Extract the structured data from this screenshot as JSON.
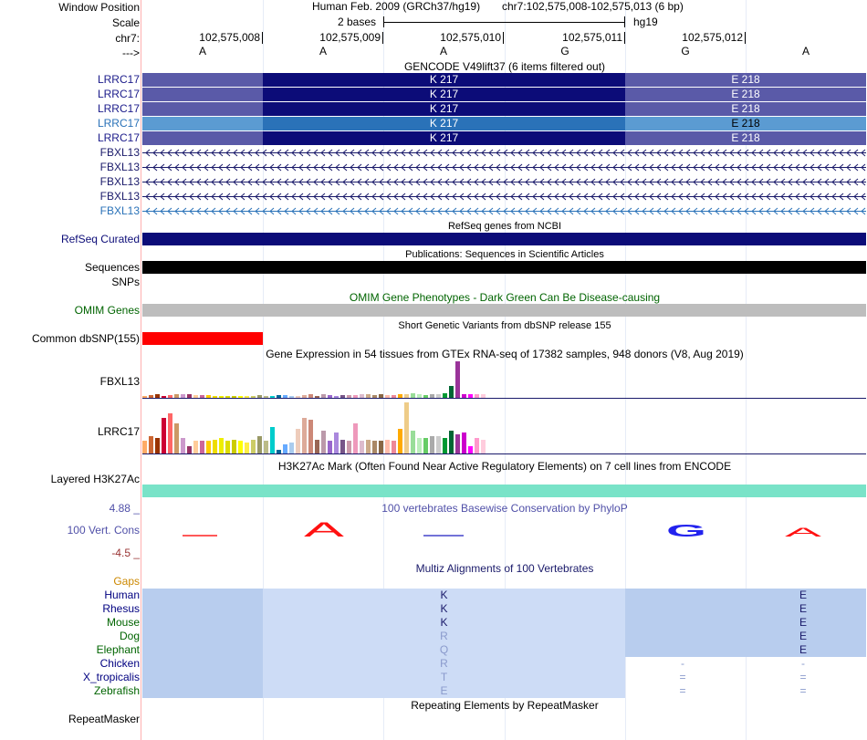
{
  "colors": {
    "lrrc_left": "#5a5aa8",
    "lrrc_mid": "#0c0c78",
    "lrrc_alt_left": "#5b9bd2",
    "lrrc_alt_mid": "#2a72b8",
    "refseq": "#0c0c78",
    "omim_label": "#006400",
    "cons_label": "#5050a8"
  },
  "header": {
    "window_position_label": "Window Position",
    "assembly": "Human Feb. 2009 (GRCh37/hg19)",
    "position": "chr7:102,575,008-102,575,013 (6 bp)",
    "scale_label": "Scale",
    "scale_value": "2 bases",
    "scale_db": "hg19",
    "chrom_label": "chr7:",
    "arrow_label": "--->",
    "positions": [
      "102,575,008",
      "102,575,009",
      "102,575,010",
      "102,575,011",
      "102,575,012"
    ],
    "bases": [
      "A",
      "A",
      "A",
      "G",
      "G",
      "A"
    ]
  },
  "gencode": {
    "title": "GENCODE V49lift37 (6 items filtered out)",
    "lrrc17": [
      {
        "label": "LRRC17",
        "mid": "K 217",
        "right": "E 218"
      },
      {
        "label": "LRRC17",
        "mid": "K 217",
        "right": "E 218"
      },
      {
        "label": "LRRC17",
        "mid": "K 217",
        "right": "E 218"
      },
      {
        "label": "LRRC17",
        "mid": "K 217",
        "right": "E 218"
      },
      {
        "label": "LRRC17",
        "mid": "K 217",
        "right": "E 218"
      }
    ],
    "fbxl13": [
      "FBXL13",
      "FBXL13",
      "FBXL13",
      "FBXL13",
      "FBXL13"
    ]
  },
  "refseq": {
    "title": "RefSeq genes from NCBI",
    "label": "RefSeq Curated"
  },
  "publications": {
    "title": "Publications: Sequences in Scientific Articles",
    "label": "Sequences"
  },
  "snps_label": "SNPs",
  "omim": {
    "title": "OMIM Gene Phenotypes - Dark Green Can Be Disease-causing",
    "label": "OMIM Genes"
  },
  "dbsnp": {
    "title": "Short Genetic Variants from dbSNP release 155",
    "label": "Common dbSNP(155)"
  },
  "gtex": {
    "title": "Gene Expression in 54 tissues from GTEx RNA-seq of 17382 samples, 948 donors (V8, Aug 2019)",
    "genes": [
      "FBXL13",
      "LRRC17"
    ],
    "palette": [
      "#ffaa66",
      "#cc6633",
      "#993300",
      "#cc0033",
      "#ff6666",
      "#cc9966",
      "#cc99cc",
      "#993366",
      "#ffcc99",
      "#cc6699",
      "#ffcc00",
      "#eedd00",
      "#eeee00",
      "#dddd00",
      "#cccc00",
      "#ffff00",
      "#ffee44",
      "#cccc66",
      "#999966",
      "#bbbb88",
      "#00cccc",
      "#006699",
      "#66aaff",
      "#aaccee",
      "#eeccbb",
      "#ddaa99",
      "#cc8877",
      "#996655",
      "#bb99aa",
      "#9966cc",
      "#aa88dd",
      "#775588",
      "#cc99aa",
      "#ee99bb",
      "#ddbbcc",
      "#ccaa88",
      "#aa8866",
      "#886644",
      "#ffbbaa",
      "#ee8899",
      "#ffaa00",
      "#eecc88",
      "#99dd99",
      "#bbeebb",
      "#66cc66",
      "#aaaaaa",
      "#cccccc",
      "#009933",
      "#006633",
      "#993399",
      "#cc00cc",
      "#ff00ff",
      "#ff99cc",
      "#ffccdd"
    ],
    "fbxl13_values": [
      2,
      3,
      4,
      2,
      3,
      4,
      4,
      5,
      3,
      3,
      3,
      2,
      2,
      2,
      2,
      2,
      2,
      2,
      3,
      2,
      2,
      3,
      3,
      2,
      2,
      3,
      4,
      2,
      4,
      3,
      2,
      3,
      3,
      3,
      4,
      4,
      3,
      4,
      3,
      3,
      4,
      5,
      6,
      4,
      3,
      4,
      5,
      6,
      15,
      45,
      4,
      5,
      4,
      5
    ],
    "lrrc17_values": [
      14,
      20,
      18,
      40,
      46,
      34,
      18,
      8,
      14,
      14,
      14,
      16,
      18,
      14,
      16,
      14,
      12,
      16,
      20,
      14,
      30,
      4,
      10,
      12,
      28,
      40,
      38,
      16,
      26,
      14,
      24,
      16,
      14,
      34,
      14,
      16,
      14,
      14,
      16,
      14,
      28,
      58,
      26,
      18,
      18,
      20,
      20,
      18,
      26,
      22,
      24,
      8,
      18,
      16
    ]
  },
  "h3k27ac": {
    "title": "H3K27Ac Mark (Often Found Near Active Regulatory Elements) on 7 cell lines from ENCODE",
    "label": "Layered H3K27Ac"
  },
  "conservation": {
    "title": "100 vertebrates Basewise Conservation by PhyloP",
    "label": "100 Vert. Cons",
    "max": "4.88 _",
    "min": "-4.5 _",
    "letters": [
      "A",
      "G",
      "A"
    ]
  },
  "multiz": {
    "title": "Multiz Alignments of 100 Vertebrates",
    "gaps_label": "Gaps",
    "species": [
      {
        "name": "Human",
        "color": "#000080",
        "mid": "K",
        "right": "E",
        "far": ""
      },
      {
        "name": "Rhesus",
        "color": "#000080",
        "mid": "K",
        "right": "E",
        "far": ""
      },
      {
        "name": "Mouse",
        "color": "#006400",
        "mid": "K",
        "right": "E",
        "far": ""
      },
      {
        "name": "Dog",
        "color": "#006400",
        "mid": "R",
        "right": "E",
        "far": ""
      },
      {
        "name": "Elephant",
        "color": "#006400",
        "mid": "Q",
        "right": "E",
        "far": ""
      },
      {
        "name": "Chicken",
        "color": "#000080",
        "mid": "R",
        "right": "-",
        "far": "-"
      },
      {
        "name": "X_tropicalis",
        "color": "#000080",
        "mid": "T",
        "right": "=",
        "far": "="
      },
      {
        "name": "Zebrafish",
        "color": "#006400",
        "mid": "E",
        "right": "=",
        "far": "="
      }
    ]
  },
  "repeatmasker": {
    "title": "Repeating Elements by RepeatMasker",
    "label": "RepeatMasker"
  }
}
